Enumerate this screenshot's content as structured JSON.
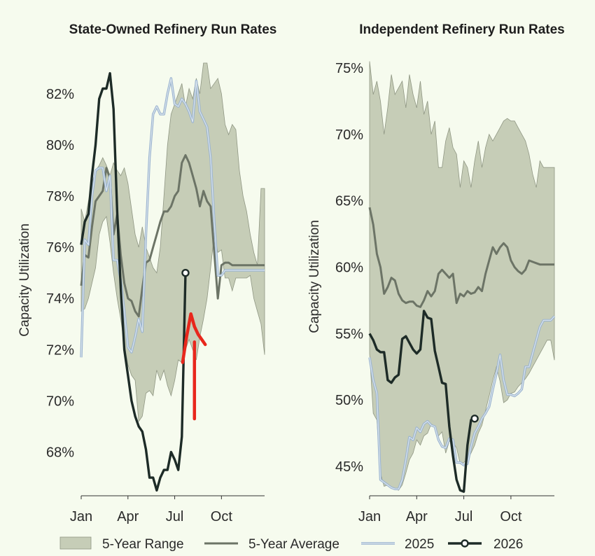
{
  "legend": [
    {
      "label": "5-Year Range",
      "kind": "band"
    },
    {
      "label": "5-Year Average",
      "kind": "line"
    },
    {
      "label": "2025",
      "kind": "line2025"
    },
    {
      "label": "2026",
      "kind": "line2026"
    }
  ],
  "colors": {
    "background": "#f6fbee",
    "range_fill": "#c6cdb7",
    "range_edge": "#8f9683",
    "average": "#6c7466",
    "y2025_outer": "#9ab3cf",
    "y2025_inner": "#dce6ee",
    "y2026": "#1d2b27",
    "annotation": "#e8271c"
  },
  "chart_data": [
    {
      "type": "line",
      "title": "State-Owned Refinery Run Rates",
      "ylabel": "Capacity Utilization",
      "xlabel": "",
      "x_range": [
        1,
        52
      ],
      "ylim": [
        66.4,
        83.2
      ],
      "x_ticks": [
        {
          "label": "Jan",
          "week": 1
        },
        {
          "label": "Apr",
          "week": 14
        },
        {
          "label": "Jul",
          "week": 27
        },
        {
          "label": "Oct",
          "week": 40
        }
      ],
      "y_ticks": [
        {
          "label": "68%",
          "value": 68
        },
        {
          "label": "70%",
          "value": 70
        },
        {
          "label": "72%",
          "value": 72
        },
        {
          "label": "74%",
          "value": 74
        },
        {
          "label": "76%",
          "value": 76
        },
        {
          "label": "78%",
          "value": 78
        },
        {
          "label": "80%",
          "value": 80
        },
        {
          "label": "82%",
          "value": 82
        }
      ],
      "range": {
        "x": [
          1,
          2,
          3,
          4,
          5,
          6,
          7,
          8,
          9,
          10,
          11,
          12,
          13,
          14,
          15,
          16,
          17,
          18,
          19,
          20,
          21,
          22,
          23,
          24,
          25,
          26,
          27,
          28,
          29,
          30,
          31,
          32,
          33,
          34,
          35,
          36,
          37,
          38,
          39,
          40,
          41,
          42,
          43,
          44,
          45,
          46,
          47,
          48,
          49,
          50,
          51,
          52
        ],
        "high": [
          77.5,
          77.0,
          77.8,
          78.5,
          79.0,
          79.2,
          79.5,
          79.2,
          78.8,
          79.3,
          79.0,
          78.8,
          79.1,
          78.5,
          77.5,
          76.5,
          76.0,
          76.8,
          76.0,
          75.6,
          75.2,
          75.0,
          76.0,
          78.0,
          80.0,
          81.2,
          81.6,
          82.0,
          82.4,
          81.5,
          82.2,
          81.8,
          82.6,
          82.0,
          83.2,
          83.2,
          82.2,
          82.4,
          82.6,
          82.0,
          80.8,
          80.4,
          80.8,
          80.6,
          79.0,
          78.0,
          77.4,
          76.5,
          75.8,
          75.3,
          78.3,
          78.3
        ],
        "low": [
          73.5,
          73.6,
          74.0,
          74.6,
          75.2,
          76.5,
          77.0,
          77.2,
          76.2,
          75.0,
          74.0,
          73.2,
          72.2,
          71.4,
          71.0,
          70.8,
          69.2,
          69.4,
          70.3,
          70.4,
          70.2,
          71.2,
          70.8,
          71.2,
          70.6,
          70.2,
          70.8,
          71.6,
          71.5,
          72.0,
          72.4,
          72.0,
          71.6,
          72.5,
          73.2,
          74.0,
          75.2,
          76.5,
          75.8,
          75.9,
          74.8,
          74.8,
          74.3,
          74.8,
          74.8,
          74.8,
          74.8,
          74.9,
          74.0,
          73.5,
          73.0,
          71.8
        ]
      },
      "series": [
        {
          "name": "5-Year Average",
          "x": [
            1,
            2,
            3,
            4,
            5,
            6,
            7,
            8,
            9,
            10,
            11,
            12,
            13,
            14,
            15,
            16,
            17,
            18,
            19,
            20,
            21,
            22,
            23,
            24,
            25,
            26,
            27,
            28,
            29,
            30,
            31,
            32,
            33,
            34,
            35,
            36,
            37,
            38,
            39,
            40,
            41,
            42,
            43,
            44,
            45,
            46,
            47,
            48,
            49,
            50,
            51,
            52
          ],
          "values": [
            74.5,
            75.7,
            75.6,
            76.8,
            77.8,
            78.0,
            78.2,
            79.1,
            78.7,
            76.5,
            77.3,
            75.7,
            74.6,
            74.0,
            73.9,
            73.5,
            73.3,
            74.4,
            75.4,
            75.5,
            76.0,
            76.5,
            77.0,
            77.4,
            77.4,
            77.6,
            78.0,
            78.2,
            79.3,
            79.6,
            79.3,
            78.8,
            78.3,
            77.6,
            78.2,
            77.8,
            77.6,
            75.8,
            74.0,
            75.3,
            75.4,
            75.4,
            75.3,
            75.3,
            75.3,
            75.3,
            75.3,
            75.3,
            75.3,
            75.3,
            75.3,
            75.3
          ]
        },
        {
          "name": "2025",
          "x": [
            1,
            2,
            3,
            4,
            5,
            6,
            7,
            8,
            9,
            10,
            11,
            12,
            13,
            14,
            15,
            16,
            17,
            18,
            19,
            20,
            21,
            22,
            23,
            24,
            25,
            26,
            27,
            28,
            29,
            30,
            31,
            32,
            33,
            34,
            35,
            36,
            37,
            38,
            39,
            40,
            41,
            42,
            43,
            44,
            45,
            46,
            47,
            48,
            49,
            50,
            51,
            52
          ],
          "values": [
            71.7,
            76.3,
            76.1,
            78.0,
            79.0,
            79.1,
            79.1,
            78.2,
            78.8,
            75.5,
            75.5,
            74.7,
            73.5,
            72.1,
            71.9,
            72.5,
            73.2,
            72.7,
            76.5,
            79.5,
            81.2,
            81.5,
            81.2,
            81.2,
            82.0,
            82.6,
            81.6,
            81.5,
            81.8,
            81.6,
            81.3,
            80.9,
            82.5,
            81.3,
            81.0,
            80.7,
            79.5,
            77.0,
            74.9,
            74.9,
            75.1,
            75.1,
            75.1,
            75.1,
            75.1,
            75.1,
            75.1,
            75.1,
            75.1,
            75.1,
            75.1,
            75.1
          ]
        },
        {
          "name": "2026",
          "x": [
            1,
            2,
            3,
            4,
            5,
            6,
            7,
            8,
            9,
            10,
            11,
            12,
            13,
            14,
            15,
            16,
            17,
            18,
            19,
            20,
            21,
            22,
            23,
            24,
            25,
            26,
            27,
            28,
            29,
            30
          ],
          "values": [
            76.1,
            77.0,
            77.3,
            78.8,
            80.0,
            81.8,
            82.2,
            82.2,
            82.8,
            81.4,
            77.4,
            74.4,
            72.0,
            71.0,
            70.0,
            69.4,
            69.0,
            68.8,
            68.1,
            67.0,
            67.0,
            66.5,
            67.0,
            67.3,
            67.3,
            68.0,
            67.7,
            67.3,
            68.6,
            75.0
          ]
        }
      ],
      "annotations": [
        {
          "kind": "red-check",
          "points": [
            [
              29.2,
              71.5
            ],
            [
              30.3,
              72.5
            ],
            [
              31.5,
              73.4
            ],
            [
              32.5,
              72.9
            ],
            [
              33.5,
              72.6
            ],
            [
              34.5,
              72.4
            ],
            [
              35.5,
              72.2
            ]
          ]
        },
        {
          "kind": "red-bar",
          "points": [
            [
              32.5,
              72.3
            ],
            [
              32.5,
              69.3
            ]
          ]
        }
      ]
    },
    {
      "type": "line",
      "title": "Independent Refinery Run Rates",
      "ylabel": "Capacity Utilization",
      "xlabel": "",
      "x_range": [
        1,
        52
      ],
      "ylim": [
        43.0,
        76.0
      ],
      "x_ticks": [
        {
          "label": "Jan",
          "week": 1
        },
        {
          "label": "Apr",
          "week": 14
        },
        {
          "label": "Jul",
          "week": 27
        },
        {
          "label": "Oct",
          "week": 40
        }
      ],
      "y_ticks": [
        {
          "label": "45%",
          "value": 45
        },
        {
          "label": "50%",
          "value": 50
        },
        {
          "label": "55%",
          "value": 55
        },
        {
          "label": "60%",
          "value": 60
        },
        {
          "label": "65%",
          "value": 65
        },
        {
          "label": "70%",
          "value": 70
        },
        {
          "label": "75%",
          "value": 75
        }
      ],
      "range": {
        "x": [
          1,
          2,
          3,
          4,
          5,
          6,
          7,
          8,
          9,
          10,
          11,
          12,
          13,
          14,
          15,
          16,
          17,
          18,
          19,
          20,
          21,
          22,
          23,
          24,
          25,
          26,
          27,
          28,
          29,
          30,
          31,
          32,
          33,
          34,
          35,
          36,
          37,
          38,
          39,
          40,
          41,
          42,
          43,
          44,
          45,
          46,
          47,
          48,
          49,
          50,
          51,
          52
        ],
        "high": [
          75.5,
          73.0,
          74.0,
          72.5,
          70.0,
          72.0,
          74.5,
          73.0,
          73.5,
          74.0,
          72.0,
          74.5,
          73.0,
          72.0,
          74.0,
          71.5,
          72.5,
          70.0,
          71.0,
          67.5,
          67.5,
          69.5,
          70.5,
          69.0,
          68.5,
          66.0,
          68.0,
          67.5,
          66.0,
          68.0,
          69.5,
          67.5,
          69.0,
          70.0,
          69.5,
          70.0,
          70.5,
          71.0,
          71.2,
          71.0,
          71.0,
          70.5,
          70.0,
          69.5,
          68.5,
          67.0,
          66.0,
          68.0,
          67.5,
          67.5,
          67.5,
          67.5
        ],
        "low": [
          53.5,
          49.0,
          48.5,
          44.5,
          43.5,
          43.6,
          43.4,
          43.3,
          43.2,
          43.6,
          44.5,
          45.5,
          46.0,
          47.0,
          46.6,
          47.3,
          47.5,
          48.2,
          48.0,
          47.3,
          47.6,
          46.0,
          46.9,
          46.8,
          46.4,
          45.2,
          45.3,
          45.5,
          46.0,
          46.6,
          47.5,
          48.1,
          49.2,
          50.3,
          51.5,
          52.5,
          51.4,
          49.8,
          50.0,
          50.5,
          50.6,
          51.0,
          51.3,
          51.6,
          52.0,
          52.5,
          53.0,
          53.5,
          54.0,
          54.5,
          54.5,
          53.0
        ]
      },
      "series": [
        {
          "name": "5-Year Average",
          "x": [
            1,
            2,
            3,
            4,
            5,
            6,
            7,
            8,
            9,
            10,
            11,
            12,
            13,
            14,
            15,
            16,
            17,
            18,
            19,
            20,
            21,
            22,
            23,
            24,
            25,
            26,
            27,
            28,
            29,
            30,
            31,
            32,
            33,
            34,
            35,
            36,
            37,
            38,
            39,
            40,
            41,
            42,
            43,
            44,
            45,
            46,
            47,
            48,
            49,
            50,
            51,
            52
          ],
          "values": [
            64.5,
            63.2,
            61.0,
            60.0,
            58.0,
            58.5,
            59.2,
            59.0,
            58.0,
            57.5,
            57.3,
            57.4,
            57.4,
            57.1,
            57.0,
            57.5,
            58.2,
            57.8,
            58.2,
            59.5,
            59.8,
            59.5,
            59.2,
            59.5,
            57.3,
            58.0,
            57.8,
            58.2,
            58.0,
            58.1,
            58.5,
            58.2,
            59.5,
            60.5,
            61.5,
            61.0,
            61.5,
            61.8,
            61.5,
            60.5,
            60.0,
            59.7,
            59.5,
            59.8,
            60.5,
            60.4,
            60.3,
            60.2,
            60.2,
            60.2,
            60.2,
            60.2
          ]
        },
        {
          "name": "2025",
          "x": [
            1,
            2,
            3,
            4,
            5,
            6,
            7,
            8,
            9,
            10,
            11,
            12,
            13,
            14,
            15,
            16,
            17,
            18,
            19,
            20,
            21,
            22,
            23,
            24,
            25,
            26,
            27,
            28,
            29,
            30,
            31,
            32,
            33,
            34,
            35,
            36,
            37,
            38,
            39,
            40,
            41,
            42,
            43,
            44,
            45,
            46,
            47,
            48,
            49,
            50,
            51,
            52
          ],
          "values": [
            53.2,
            51.5,
            50.5,
            44.0,
            43.8,
            43.6,
            43.4,
            43.3,
            43.3,
            44.0,
            45.5,
            47.2,
            47.0,
            47.9,
            47.6,
            48.2,
            48.4,
            48.1,
            48.0,
            47.0,
            46.5,
            46.4,
            47.1,
            47.0,
            45.3,
            45.3,
            45.1,
            45.2,
            46.5,
            47.5,
            48.0,
            48.6,
            49.0,
            49.5,
            50.8,
            52.0,
            53.4,
            51.5,
            50.4,
            50.4,
            50.3,
            50.5,
            50.8,
            52.5,
            52.5,
            53.5,
            54.5,
            55.5,
            56.0,
            56.0,
            56.0,
            56.3
          ]
        },
        {
          "name": "2026",
          "x": [
            1,
            2,
            3,
            4,
            5,
            6,
            7,
            8,
            9,
            10,
            11,
            12,
            13,
            14,
            15,
            16,
            17,
            18,
            19,
            20,
            21,
            22,
            23,
            24,
            25,
            26,
            27,
            28,
            29,
            30
          ],
          "values": [
            55.0,
            54.5,
            53.8,
            53.6,
            53.6,
            51.5,
            51.3,
            51.7,
            51.9,
            54.6,
            54.8,
            54.3,
            53.8,
            53.5,
            53.8,
            56.7,
            56.2,
            56.1,
            53.7,
            52.5,
            51.3,
            51.2,
            48.0,
            45.8,
            44.0,
            43.2,
            43.1,
            46.6,
            48.5,
            48.6
          ]
        }
      ],
      "annotations": []
    }
  ]
}
